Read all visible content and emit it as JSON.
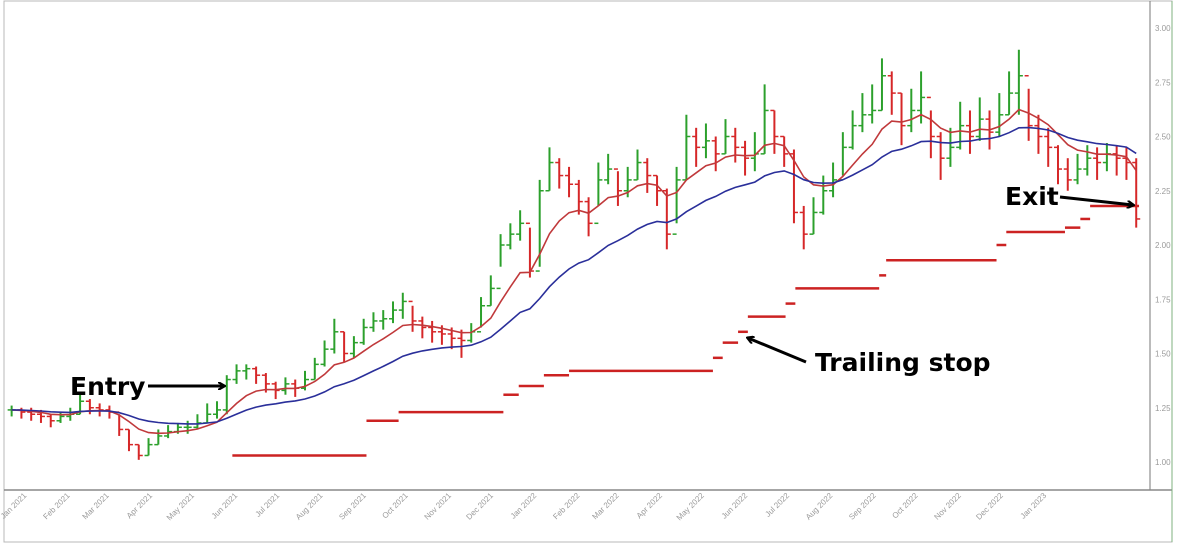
{
  "chart_data": {
    "type": "ohlc-bar",
    "title": "",
    "xlabel": "",
    "ylabel": "",
    "ylim": [
      0.88,
      3.13
    ],
    "grid": false,
    "y_ticks": [
      "1.00",
      "1.25",
      "1.50",
      "1.75",
      "2.00",
      "2.25",
      "2.50",
      "2.75",
      "3.00"
    ],
    "x_ticks": [
      "Jan 2021",
      "Feb 2021",
      "Mar 2021",
      "Apr 2021",
      "May 2021",
      "Jun 2021",
      "Jul 2021",
      "Aug 2021",
      "Sep 2021",
      "Oct 2021",
      "Nov 2021",
      "Dec 2021",
      "Jan 2022",
      "Feb 2022",
      "Mar 2022",
      "Apr 2022",
      "May 2022",
      "Jun 2022",
      "Jul 2022",
      "Aug 2022",
      "Sep 2022",
      "Oct 2022",
      "Nov 2022",
      "Dec 2022",
      "Jan 2023"
    ],
    "x_tick_dates": [
      "2021-01-01",
      "2021-02-01",
      "2021-03-01",
      "2021-04-01",
      "2021-05-01",
      "2021-06-01",
      "2021-07-01",
      "2021-08-01",
      "2021-09-01",
      "2021-10-01",
      "2021-11-01",
      "2021-12-01",
      "2022-01-01",
      "2022-02-01",
      "2022-03-01",
      "2022-04-01",
      "2022-05-01",
      "2022-06-01",
      "2022-07-01",
      "2022-08-01",
      "2022-09-01",
      "2022-10-01",
      "2022-11-01",
      "2022-12-01",
      "2023-01-01"
    ],
    "colors": {
      "up": "#2ca02c",
      "down": "#d62728",
      "fast_ma": "#c0393b",
      "slow_ma": "#2a2f9a",
      "trailing_stop": "#cc2222",
      "axis_text": "#9a9a9a"
    },
    "bars_columns": [
      "date",
      "low",
      "high",
      "close"
    ],
    "bars": [
      [
        "2020-12-21",
        1.21,
        1.26,
        1.24
      ],
      [
        "2020-12-28",
        1.2,
        1.25,
        1.23
      ],
      [
        "2021-01-04",
        1.19,
        1.25,
        1.22
      ],
      [
        "2021-01-11",
        1.18,
        1.24,
        1.21
      ],
      [
        "2021-01-18",
        1.16,
        1.22,
        1.19
      ],
      [
        "2021-01-25",
        1.18,
        1.23,
        1.21
      ],
      [
        "2021-02-01",
        1.19,
        1.25,
        1.22
      ],
      [
        "2021-02-08",
        1.22,
        1.32,
        1.28
      ],
      [
        "2021-02-15",
        1.22,
        1.29,
        1.25
      ],
      [
        "2021-02-22",
        1.21,
        1.27,
        1.24
      ],
      [
        "2021-03-01",
        1.2,
        1.26,
        1.23
      ],
      [
        "2021-03-08",
        1.12,
        1.22,
        1.15
      ],
      [
        "2021-03-15",
        1.05,
        1.15,
        1.08
      ],
      [
        "2021-03-22",
        1.01,
        1.08,
        1.03
      ],
      [
        "2021-03-29",
        1.03,
        1.11,
        1.08
      ],
      [
        "2021-04-05",
        1.08,
        1.15,
        1.12
      ],
      [
        "2021-04-12",
        1.11,
        1.17,
        1.14
      ],
      [
        "2021-04-19",
        1.13,
        1.18,
        1.16
      ],
      [
        "2021-04-26",
        1.13,
        1.19,
        1.16
      ],
      [
        "2021-05-03",
        1.15,
        1.22,
        1.18
      ],
      [
        "2021-05-10",
        1.18,
        1.27,
        1.22
      ],
      [
        "2021-05-17",
        1.2,
        1.28,
        1.24
      ],
      [
        "2021-05-24",
        1.22,
        1.4,
        1.38
      ],
      [
        "2021-05-31",
        1.36,
        1.45,
        1.42
      ],
      [
        "2021-06-07",
        1.38,
        1.45,
        1.43
      ],
      [
        "2021-06-14",
        1.36,
        1.44,
        1.4
      ],
      [
        "2021-06-21",
        1.32,
        1.41,
        1.36
      ],
      [
        "2021-06-28",
        1.29,
        1.37,
        1.33
      ],
      [
        "2021-07-05",
        1.31,
        1.39,
        1.36
      ],
      [
        "2021-07-12",
        1.3,
        1.38,
        1.34
      ],
      [
        "2021-07-19",
        1.33,
        1.42,
        1.38
      ],
      [
        "2021-07-26",
        1.38,
        1.48,
        1.45
      ],
      [
        "2021-08-02",
        1.44,
        1.56,
        1.52
      ],
      [
        "2021-08-09",
        1.5,
        1.66,
        1.6
      ],
      [
        "2021-08-16",
        1.46,
        1.6,
        1.5
      ],
      [
        "2021-08-23",
        1.48,
        1.58,
        1.55
      ],
      [
        "2021-08-30",
        1.54,
        1.66,
        1.62
      ],
      [
        "2021-09-06",
        1.6,
        1.69,
        1.65
      ],
      [
        "2021-09-13",
        1.61,
        1.7,
        1.66
      ],
      [
        "2021-09-20",
        1.64,
        1.74,
        1.7
      ],
      [
        "2021-09-27",
        1.66,
        1.78,
        1.74
      ],
      [
        "2021-10-04",
        1.6,
        1.72,
        1.65
      ],
      [
        "2021-10-11",
        1.57,
        1.67,
        1.62
      ],
      [
        "2021-10-18",
        1.55,
        1.65,
        1.6
      ],
      [
        "2021-10-25",
        1.54,
        1.63,
        1.59
      ],
      [
        "2021-11-01",
        1.52,
        1.62,
        1.57
      ],
      [
        "2021-11-08",
        1.48,
        1.61,
        1.56
      ],
      [
        "2021-11-15",
        1.55,
        1.64,
        1.6
      ],
      [
        "2021-11-22",
        1.62,
        1.76,
        1.72
      ],
      [
        "2021-11-29",
        1.72,
        1.86,
        1.8
      ],
      [
        "2021-12-06",
        1.9,
        2.05,
        2.0
      ],
      [
        "2021-12-13",
        1.98,
        2.1,
        2.05
      ],
      [
        "2021-12-20",
        2.02,
        2.16,
        2.1
      ],
      [
        "2021-12-27",
        1.85,
        2.08,
        1.88
      ],
      [
        "2022-01-03",
        1.9,
        2.3,
        2.25
      ],
      [
        "2022-01-10",
        2.25,
        2.45,
        2.38
      ],
      [
        "2022-01-17",
        2.26,
        2.4,
        2.32
      ],
      [
        "2022-01-24",
        2.22,
        2.36,
        2.28
      ],
      [
        "2022-01-31",
        2.14,
        2.3,
        2.2
      ],
      [
        "2022-02-07",
        2.04,
        2.22,
        2.1
      ],
      [
        "2022-02-14",
        2.18,
        2.38,
        2.3
      ],
      [
        "2022-02-21",
        2.28,
        2.42,
        2.35
      ],
      [
        "2022-02-28",
        2.18,
        2.34,
        2.25
      ],
      [
        "2022-03-07",
        2.22,
        2.36,
        2.3
      ],
      [
        "2022-03-14",
        2.3,
        2.44,
        2.38
      ],
      [
        "2022-03-21",
        2.24,
        2.4,
        2.32
      ],
      [
        "2022-03-28",
        2.18,
        2.32,
        2.25
      ],
      [
        "2022-04-04",
        1.98,
        2.26,
        2.05
      ],
      [
        "2022-04-11",
        2.1,
        2.36,
        2.3
      ],
      [
        "2022-04-18",
        2.3,
        2.6,
        2.5
      ],
      [
        "2022-04-25",
        2.36,
        2.54,
        2.45
      ],
      [
        "2022-05-02",
        2.4,
        2.56,
        2.48
      ],
      [
        "2022-05-09",
        2.34,
        2.5,
        2.42
      ],
      [
        "2022-05-16",
        2.42,
        2.58,
        2.5
      ],
      [
        "2022-05-23",
        2.38,
        2.54,
        2.45
      ],
      [
        "2022-05-30",
        2.32,
        2.48,
        2.4
      ],
      [
        "2022-06-06",
        2.34,
        2.52,
        2.42
      ],
      [
        "2022-06-13",
        2.42,
        2.74,
        2.62
      ],
      [
        "2022-06-20",
        2.42,
        2.62,
        2.5
      ],
      [
        "2022-06-27",
        2.36,
        2.5,
        2.42
      ],
      [
        "2022-07-04",
        2.1,
        2.44,
        2.15
      ],
      [
        "2022-07-11",
        1.98,
        2.18,
        2.05
      ],
      [
        "2022-07-18",
        2.05,
        2.22,
        2.15
      ],
      [
        "2022-07-25",
        2.14,
        2.32,
        2.25
      ],
      [
        "2022-08-01",
        2.22,
        2.38,
        2.3
      ],
      [
        "2022-08-08",
        2.32,
        2.52,
        2.45
      ],
      [
        "2022-08-15",
        2.44,
        2.62,
        2.55
      ],
      [
        "2022-08-22",
        2.52,
        2.7,
        2.6
      ],
      [
        "2022-08-29",
        2.56,
        2.74,
        2.62
      ],
      [
        "2022-09-05",
        2.62,
        2.86,
        2.78
      ],
      [
        "2022-09-12",
        2.6,
        2.8,
        2.7
      ],
      [
        "2022-09-19",
        2.46,
        2.7,
        2.55
      ],
      [
        "2022-09-26",
        2.52,
        2.72,
        2.62
      ],
      [
        "2022-10-03",
        2.56,
        2.8,
        2.68
      ],
      [
        "2022-10-10",
        2.4,
        2.62,
        2.5
      ],
      [
        "2022-10-17",
        2.3,
        2.52,
        2.4
      ],
      [
        "2022-10-24",
        2.36,
        2.54,
        2.45
      ],
      [
        "2022-10-31",
        2.44,
        2.66,
        2.55
      ],
      [
        "2022-11-07",
        2.42,
        2.62,
        2.5
      ],
      [
        "2022-11-14",
        2.48,
        2.68,
        2.58
      ],
      [
        "2022-11-21",
        2.44,
        2.62,
        2.52
      ],
      [
        "2022-11-28",
        2.5,
        2.7,
        2.6
      ],
      [
        "2022-12-05",
        2.6,
        2.8,
        2.7
      ],
      [
        "2022-12-12",
        2.6,
        2.9,
        2.78
      ],
      [
        "2022-12-19",
        2.48,
        2.72,
        2.55
      ],
      [
        "2022-12-26",
        2.42,
        2.6,
        2.5
      ],
      [
        "2023-01-02",
        2.36,
        2.54,
        2.45
      ],
      [
        "2023-01-09",
        2.28,
        2.46,
        2.35
      ],
      [
        "2023-01-16",
        2.25,
        2.4,
        2.3
      ],
      [
        "2023-01-23",
        2.28,
        2.42,
        2.35
      ],
      [
        "2023-01-30",
        2.32,
        2.46,
        2.4
      ],
      [
        "2023-02-06",
        2.3,
        2.45,
        2.38
      ],
      [
        "2023-02-13",
        2.34,
        2.47,
        2.42
      ],
      [
        "2023-02-20",
        2.32,
        2.46,
        2.4
      ],
      [
        "2023-02-27",
        2.3,
        2.45,
        2.38
      ],
      [
        "2023-03-06",
        2.08,
        2.4,
        2.12
      ]
    ],
    "trailing_stop_columns": [
      "start",
      "end",
      "value"
    ],
    "trailing_stop": [
      [
        "2021-05-28",
        "2021-09-01",
        1.03
      ],
      [
        "2021-09-01",
        "2021-09-24",
        1.19
      ],
      [
        "2021-09-24",
        "2021-12-08",
        1.23
      ],
      [
        "2021-12-08",
        "2021-12-19",
        1.31
      ],
      [
        "2021-12-19",
        "2022-01-06",
        1.35
      ],
      [
        "2022-01-06",
        "2022-01-24",
        1.4
      ],
      [
        "2022-01-24",
        "2022-05-07",
        1.42
      ],
      [
        "2022-05-07",
        "2022-05-14",
        1.48
      ],
      [
        "2022-05-14",
        "2022-05-25",
        1.55
      ],
      [
        "2022-05-25",
        "2022-06-01",
        1.6
      ],
      [
        "2022-06-01",
        "2022-06-28",
        1.67
      ],
      [
        "2022-06-28",
        "2022-07-05",
        1.73
      ],
      [
        "2022-07-05",
        "2022-09-03",
        1.8
      ],
      [
        "2022-09-03",
        "2022-09-08",
        1.86
      ],
      [
        "2022-09-08",
        "2022-11-26",
        1.93
      ],
      [
        "2022-11-26",
        "2022-12-03",
        2.0
      ],
      [
        "2022-12-03",
        "2023-01-14",
        2.06
      ],
      [
        "2023-01-14",
        "2023-01-25",
        2.08
      ],
      [
        "2023-01-25",
        "2023-02-01",
        2.12
      ],
      [
        "2023-02-01",
        "2023-03-08",
        2.18
      ]
    ],
    "annotations": {
      "entry": "Entry",
      "exit": "Exit",
      "trailing_stop": "Trailing stop"
    }
  }
}
